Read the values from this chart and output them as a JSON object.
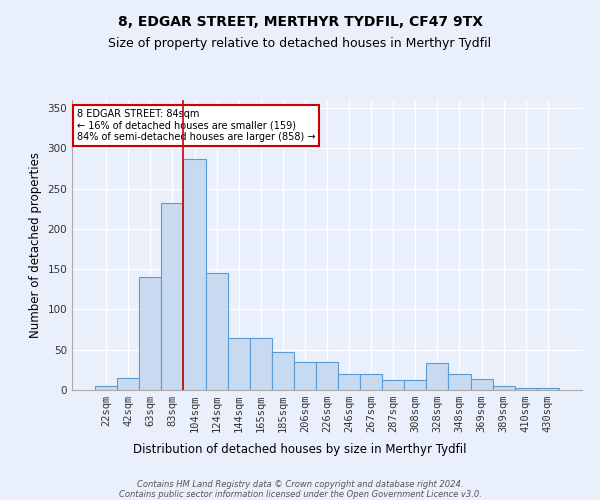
{
  "title": "8, EDGAR STREET, MERTHYR TYDFIL, CF47 9TX",
  "subtitle": "Size of property relative to detached houses in Merthyr Tydfil",
  "xlabel": "Distribution of detached houses by size in Merthyr Tydfil",
  "ylabel": "Number of detached properties",
  "categories": [
    "22sqm",
    "42sqm",
    "63sqm",
    "83sqm",
    "104sqm",
    "124sqm",
    "144sqm",
    "165sqm",
    "185sqm",
    "206sqm",
    "226sqm",
    "246sqm",
    "267sqm",
    "287sqm",
    "308sqm",
    "328sqm",
    "348sqm",
    "369sqm",
    "389sqm",
    "410sqm",
    "430sqm"
  ],
  "values": [
    5,
    15,
    140,
    232,
    287,
    145,
    65,
    65,
    47,
    35,
    35,
    20,
    20,
    13,
    13,
    33,
    20,
    14,
    5,
    3,
    2
  ],
  "bar_color": "#c8daf0",
  "bar_edge_color": "#5b9bd5",
  "vline_x_index": 4,
  "vline_color": "#cc0000",
  "annotation_text": "8 EDGAR STREET: 84sqm\n← 16% of detached houses are smaller (159)\n84% of semi-detached houses are larger (858) →",
  "annotation_box_color": "white",
  "annotation_box_edge_color": "#cc0000",
  "ylim": [
    0,
    360
  ],
  "yticks": [
    0,
    50,
    100,
    150,
    200,
    250,
    300,
    350
  ],
  "footer": "Contains HM Land Registry data © Crown copyright and database right 2024.\nContains public sector information licensed under the Open Government Licence v3.0.",
  "background_color": "#eaf0fb",
  "plot_background_color": "#eaf0fb",
  "grid_color": "#ffffff",
  "title_fontsize": 10,
  "subtitle_fontsize": 9,
  "axis_label_fontsize": 8.5,
  "tick_fontsize": 7.5,
  "footer_fontsize": 6.0
}
